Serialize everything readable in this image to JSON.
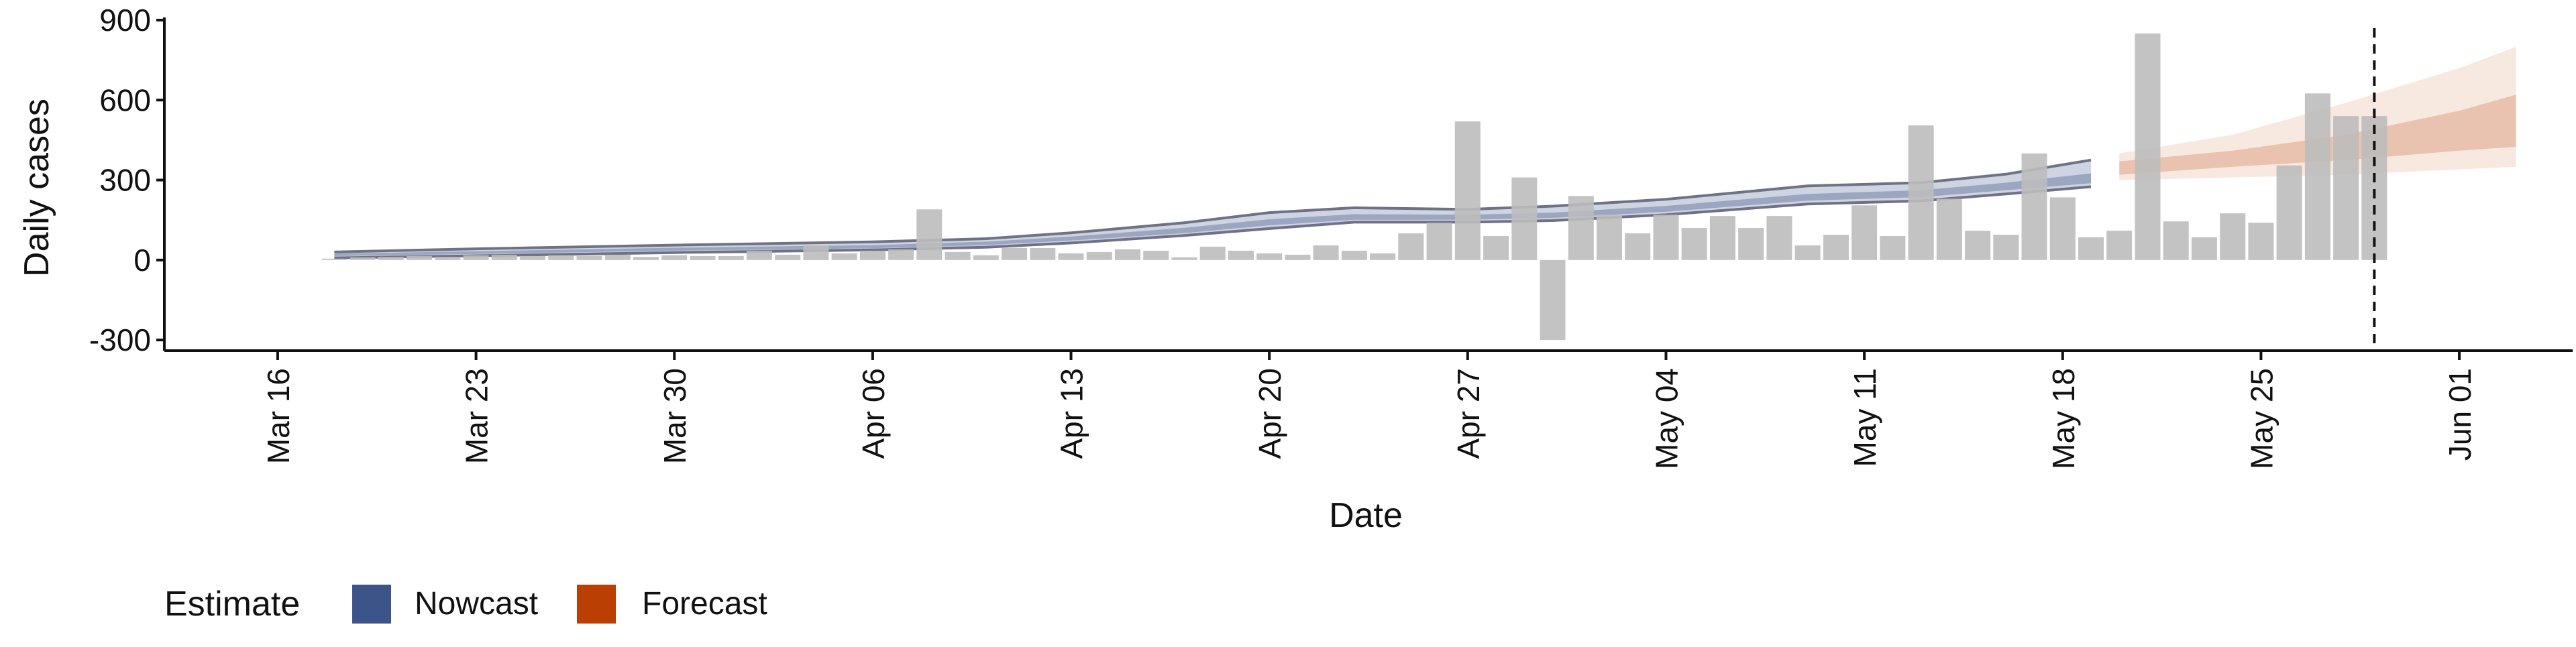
{
  "chart_data": {
    "type": "bar",
    "xlabel": "Date",
    "ylabel": "Daily cases",
    "ylim": [
      -340,
      900
    ],
    "x_range": [
      "2020-03-12",
      "2020-06-05"
    ],
    "x_ticks": [
      {
        "date": "2020-03-16",
        "label": "Mar 16"
      },
      {
        "date": "2020-03-23",
        "label": "Mar 23"
      },
      {
        "date": "2020-03-30",
        "label": "Mar 30"
      },
      {
        "date": "2020-04-06",
        "label": "Apr 06"
      },
      {
        "date": "2020-04-13",
        "label": "Apr 13"
      },
      {
        "date": "2020-04-20",
        "label": "Apr 20"
      },
      {
        "date": "2020-04-27",
        "label": "Apr 27"
      },
      {
        "date": "2020-05-04",
        "label": "May 04"
      },
      {
        "date": "2020-05-11",
        "label": "May 11"
      },
      {
        "date": "2020-05-18",
        "label": "May 18"
      },
      {
        "date": "2020-05-25",
        "label": "May 25"
      },
      {
        "date": "2020-06-01",
        "label": "Jun 01"
      }
    ],
    "y_ticks": [
      {
        "value": 900,
        "label": "900"
      },
      {
        "value": 600,
        "label": "600"
      },
      {
        "value": 300,
        "label": "300"
      },
      {
        "value": 0,
        "label": "0"
      },
      {
        "value": -300,
        "label": "-300"
      }
    ],
    "grid": false,
    "reference_line_date": "2020-05-29",
    "reference_line_style": "dashed",
    "bar_color": "#bdbdbd",
    "bars": {
      "dates": [
        "2020-03-18",
        "2020-03-19",
        "2020-03-20",
        "2020-03-21",
        "2020-03-22",
        "2020-03-23",
        "2020-03-24",
        "2020-03-25",
        "2020-03-26",
        "2020-03-27",
        "2020-03-28",
        "2020-03-29",
        "2020-03-30",
        "2020-03-31",
        "2020-04-01",
        "2020-04-02",
        "2020-04-03",
        "2020-04-04",
        "2020-04-05",
        "2020-04-06",
        "2020-04-07",
        "2020-04-08",
        "2020-04-09",
        "2020-04-10",
        "2020-04-11",
        "2020-04-12",
        "2020-04-13",
        "2020-04-14",
        "2020-04-15",
        "2020-04-16",
        "2020-04-17",
        "2020-04-18",
        "2020-04-19",
        "2020-04-20",
        "2020-04-21",
        "2020-04-22",
        "2020-04-23",
        "2020-04-24",
        "2020-04-25",
        "2020-04-26",
        "2020-04-27",
        "2020-04-28",
        "2020-04-29",
        "2020-04-30",
        "2020-05-01",
        "2020-05-02",
        "2020-05-03",
        "2020-05-04",
        "2020-05-05",
        "2020-05-06",
        "2020-05-07",
        "2020-05-08",
        "2020-05-09",
        "2020-05-10",
        "2020-05-11",
        "2020-05-12",
        "2020-05-13",
        "2020-05-14",
        "2020-05-15",
        "2020-05-16",
        "2020-05-17",
        "2020-05-18",
        "2020-05-19",
        "2020-05-20",
        "2020-05-21",
        "2020-05-22",
        "2020-05-23",
        "2020-05-24",
        "2020-05-25",
        "2020-05-26",
        "2020-05-27",
        "2020-05-28",
        "2020-05-29"
      ],
      "values": [
        5,
        10,
        12,
        15,
        12,
        18,
        20,
        15,
        18,
        15,
        20,
        12,
        18,
        15,
        15,
        35,
        20,
        55,
        25,
        35,
        40,
        190,
        30,
        18,
        45,
        45,
        25,
        30,
        40,
        35,
        10,
        50,
        35,
        25,
        20,
        55,
        35,
        25,
        100,
        140,
        520,
        90,
        310,
        -300,
        240,
        170,
        100,
        170,
        120,
        165,
        120,
        165,
        55,
        95,
        205,
        90,
        505,
        230,
        110,
        95,
        400,
        235,
        85,
        110,
        850,
        145,
        85,
        175,
        140,
        355,
        625,
        540,
        540
      ]
    },
    "series": [
      {
        "name": "Nowcast",
        "color": "#3c5488",
        "x": [
          "2020-03-18",
          "2020-03-23",
          "2020-03-30",
          "2020-04-06",
          "2020-04-10",
          "2020-04-13",
          "2020-04-17",
          "2020-04-20",
          "2020-04-23",
          "2020-04-27",
          "2020-04-30",
          "2020-05-04",
          "2020-05-09",
          "2020-05-13",
          "2020-05-16",
          "2020-05-19"
        ],
        "median": [
          20,
          28,
          40,
          50,
          62,
          80,
          110,
          140,
          160,
          160,
          168,
          190,
          235,
          248,
          275,
          300
        ],
        "outer_lower": [
          8,
          16,
          28,
          38,
          48,
          64,
          92,
          118,
          142,
          142,
          148,
          170,
          210,
          222,
          248,
          275
        ],
        "outer_upper": [
          30,
          42,
          56,
          68,
          80,
          102,
          140,
          178,
          196,
          190,
          202,
          228,
          278,
          290,
          322,
          375
        ],
        "inner_lower": [
          15,
          23,
          35,
          44,
          56,
          73,
          101,
          130,
          151,
          151,
          158,
          181,
          223,
          236,
          262,
          288
        ],
        "inner_upper": [
          24,
          33,
          46,
          56,
          69,
          88,
          121,
          153,
          172,
          170,
          178,
          203,
          248,
          262,
          290,
          325
        ]
      },
      {
        "name": "Forecast",
        "color": "#bb3e03",
        "x": [
          "2020-05-20",
          "2020-05-24",
          "2020-05-28",
          "2020-06-01",
          "2020-06-03"
        ],
        "median": [
          350,
          385,
          420,
          455,
          480
        ],
        "outer_lower": [
          300,
          310,
          320,
          340,
          350
        ],
        "outer_upper": [
          400,
          470,
          590,
          720,
          800
        ],
        "inner_lower": [
          320,
          350,
          375,
          410,
          425
        ],
        "inner_upper": [
          370,
          410,
          470,
          560,
          620
        ]
      }
    ],
    "legend": {
      "title": "Estimate",
      "position": "bottom-left",
      "entries": [
        {
          "label": "Nowcast",
          "color": "#3c5488"
        },
        {
          "label": "Forecast",
          "color": "#bb3e03"
        }
      ]
    }
  }
}
